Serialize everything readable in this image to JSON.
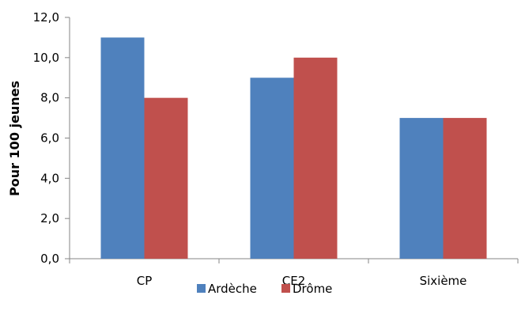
{
  "chart_data": {
    "type": "bar",
    "title": "",
    "xlabel": "",
    "ylabel": "Pour 100 jeunes",
    "categories": [
      "CP",
      "CE2",
      "Sixième"
    ],
    "series": [
      {
        "name": "Ardèche",
        "values": [
          11,
          9,
          7
        ],
        "color": "#4F81BD"
      },
      {
        "name": "Drôme",
        "values": [
          8,
          10,
          7
        ],
        "color": "#C0504D"
      }
    ],
    "ylim": [
      0,
      12
    ],
    "y_ticks": [
      "0,0",
      "2,0",
      "4,0",
      "6,0",
      "8,0",
      "10,0",
      "12,0"
    ],
    "legend_position": "bottom",
    "grid": false
  }
}
